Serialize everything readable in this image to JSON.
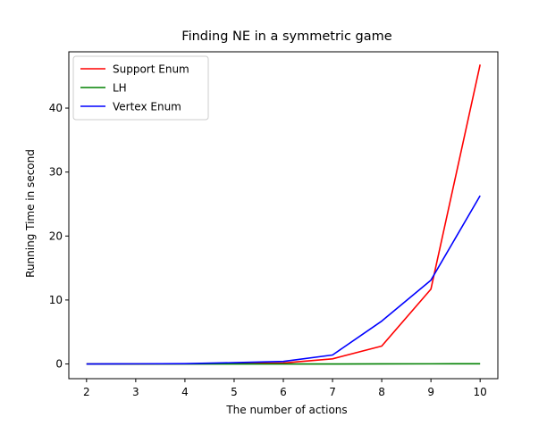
{
  "chart_data": {
    "type": "line",
    "title": "Finding NE in a symmetric game",
    "xlabel": "The number of actions",
    "ylabel": "Running Time in second",
    "x": [
      2,
      3,
      4,
      5,
      6,
      7,
      8,
      9,
      10
    ],
    "xlim": [
      1.64,
      10.36
    ],
    "ylim": [
      -2.3,
      48.8
    ],
    "xticks": [
      2,
      3,
      4,
      5,
      6,
      7,
      8,
      9,
      10
    ],
    "yticks": [
      0,
      10,
      20,
      30,
      40
    ],
    "grid": false,
    "legend_position": "top-left",
    "series": [
      {
        "name": "Support Enum",
        "color": "#ff0000",
        "values": [
          0.0,
          0.0,
          0.02,
          0.05,
          0.15,
          0.8,
          2.8,
          11.7,
          46.8
        ]
      },
      {
        "name": "LH",
        "color": "#008000",
        "values": [
          0.0,
          0.0,
          0.0,
          0.0,
          0.0,
          0.0,
          0.01,
          0.02,
          0.03
        ]
      },
      {
        "name": "Vertex Enum",
        "color": "#0000ff",
        "values": [
          0.0,
          0.02,
          0.05,
          0.2,
          0.4,
          1.4,
          6.7,
          13.1,
          26.3
        ]
      }
    ]
  }
}
